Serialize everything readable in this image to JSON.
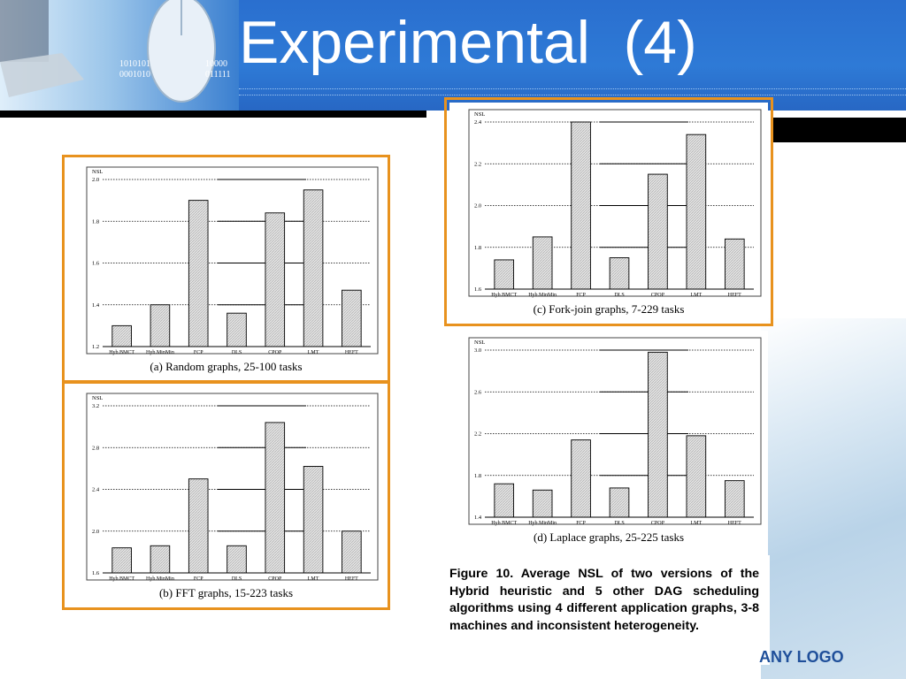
{
  "slide": {
    "title": "Experimental  (4)",
    "logo_text": "ANY LOGO",
    "caption": "Figure 10. Average NSL of two versions of the Hybrid heuristic and 5 other DAG scheduling algorithms using 4 different application graphs, 3-8 machines and inconsistent heterogeneity."
  },
  "header_image": {
    "bits_left": "1010101\n0001010",
    "bits_right": "10000\n011111"
  },
  "colors": {
    "header_blue": "#2e7ad6",
    "frame_orange": "#e8921e",
    "bar_fill": "#d9d9d9",
    "logo_blue": "#1f4f9a"
  },
  "chart_data": [
    {
      "id": "a",
      "type": "bar",
      "title": "(a) Random graphs, 25-100 tasks",
      "ylabel": "NSL",
      "categories": [
        "Hyb.BMCT",
        "Hyb.MinMin",
        "FCP",
        "DLS",
        "CPOP",
        "LMT",
        "HEFT"
      ],
      "values": [
        1.3,
        1.4,
        1.9,
        1.36,
        1.84,
        1.95,
        1.47
      ],
      "ylim": [
        1.2,
        2.0
      ],
      "yticks": [
        "1.2",
        "1.4",
        "1.6",
        "1.8",
        "2.0"
      ]
    },
    {
      "id": "b",
      "type": "bar",
      "title": "(b) FFT graphs, 15-223 tasks",
      "ylabel": "NSL",
      "categories": [
        "Hyb.BMCT",
        "Hyb.MinMin",
        "FCP",
        "DLS",
        "CPOP",
        "LMT",
        "HEFT"
      ],
      "values": [
        1.84,
        1.86,
        2.5,
        1.86,
        3.04,
        2.62,
        2.0
      ],
      "ylim": [
        1.6,
        3.2
      ],
      "yticks": [
        "1.6",
        "2.0",
        "2.4",
        "2.8",
        "3.2"
      ]
    },
    {
      "id": "c",
      "type": "bar",
      "title": "(c) Fork-join graphs, 7-229 tasks",
      "ylabel": "NSL",
      "categories": [
        "Hyb.BMCT",
        "Hyb.MinMin",
        "FCP",
        "DLS",
        "CPOP",
        "LMT",
        "HEFT"
      ],
      "values": [
        1.74,
        1.85,
        2.4,
        1.75,
        2.15,
        2.34,
        1.84
      ],
      "ylim": [
        1.6,
        2.4
      ],
      "yticks": [
        "1.6",
        "1.8",
        "2.0",
        "2.2",
        "2.4"
      ]
    },
    {
      "id": "d",
      "type": "bar",
      "title": "(d) Laplace graphs, 25-225 tasks",
      "ylabel": "NSL",
      "categories": [
        "Hyb.BMCT",
        "Hyb.MinMin",
        "FCP",
        "DLS",
        "CPOP",
        "LMT",
        "HEFT"
      ],
      "values": [
        1.72,
        1.66,
        2.14,
        1.68,
        2.98,
        2.18,
        1.75
      ],
      "ylim": [
        1.4,
        3.0
      ],
      "yticks": [
        "1.4",
        "1.8",
        "2.2",
        "2.6",
        "3.0"
      ]
    }
  ]
}
